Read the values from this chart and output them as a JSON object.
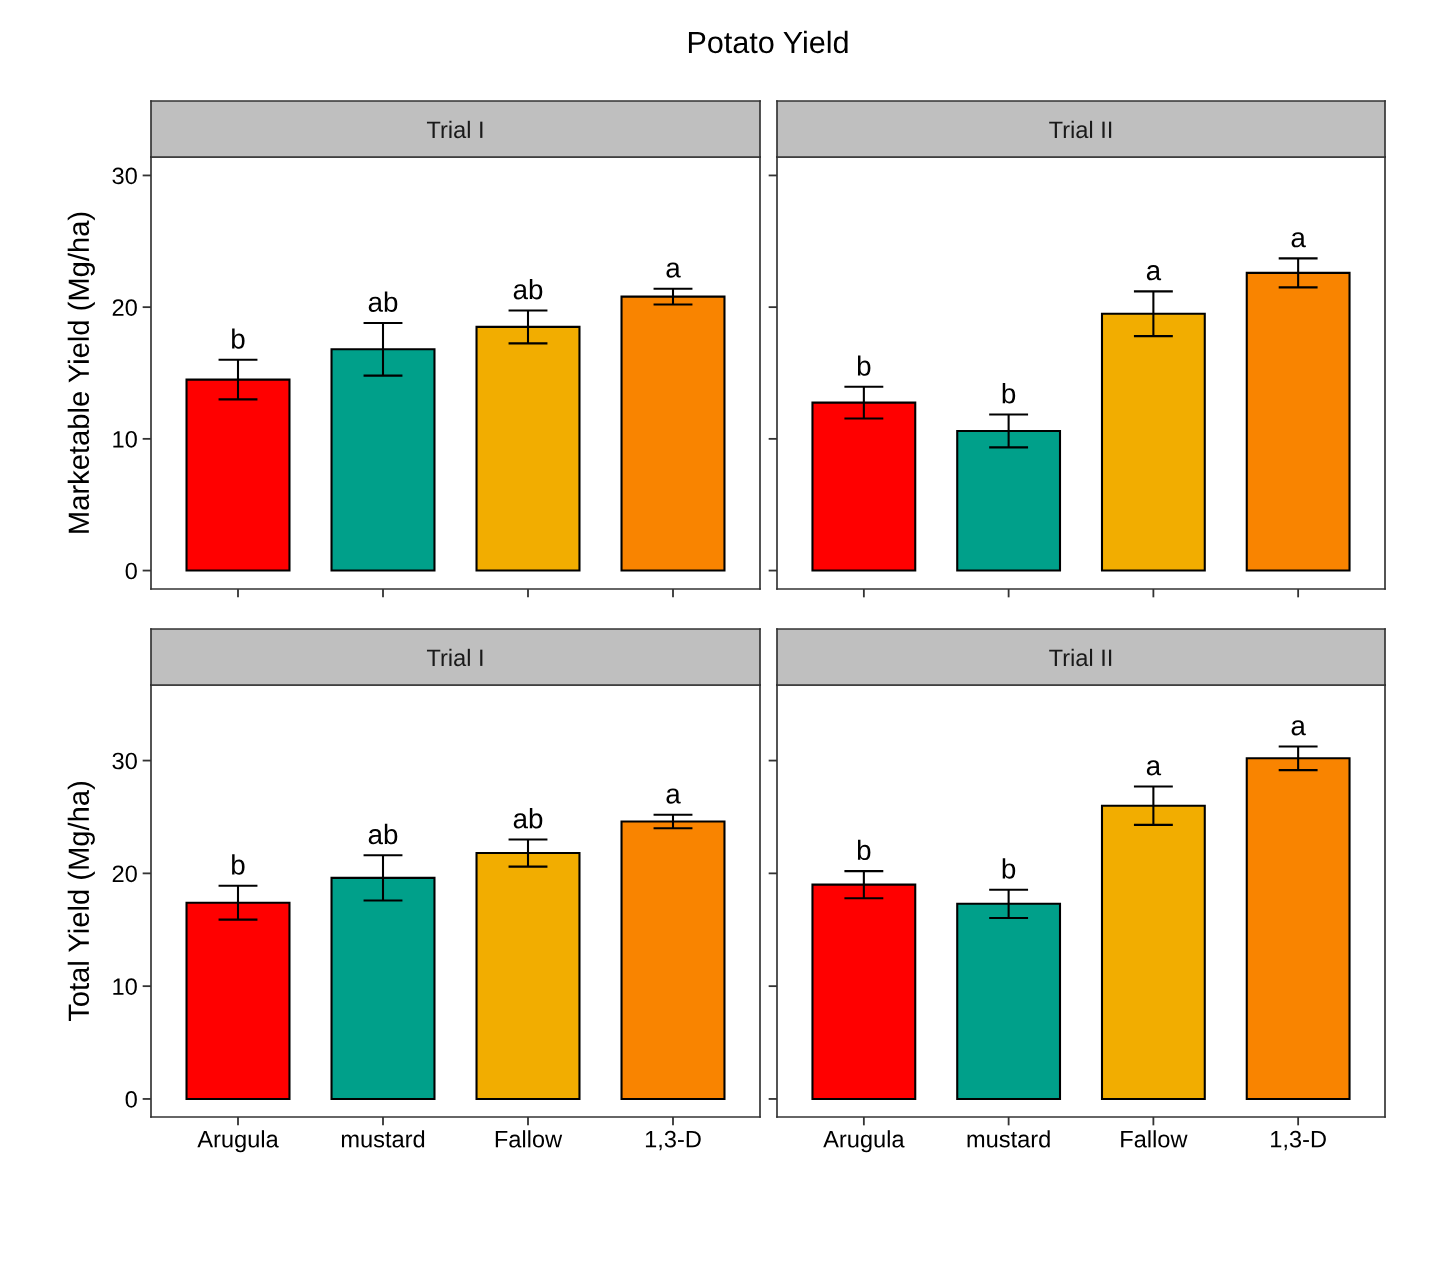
{
  "chart_data": [
    {
      "type": "bar",
      "title": "Trial I",
      "ylabel": "Marketable Yield (Mg/ha)",
      "categories": [
        "Arugula",
        "mustard",
        "Fallow",
        "1,3-D"
      ],
      "values": [
        14.5,
        16.8,
        18.5,
        20.8
      ],
      "errors": [
        1.5,
        2.0,
        1.25,
        0.6
      ],
      "colors": [
        "#ff0000",
        "#00a08a",
        "#f2ad00",
        "#f98400"
      ],
      "ylim": [
        -1.4,
        31.4
      ],
      "yticks": [
        0,
        10,
        20,
        30
      ],
      "tick_labels": "y",
      "grid": false,
      "legend": false,
      "annotations": [
        "Potato Yield",
        {
          "text": "b",
          "x": "Arugula",
          "y": 16.0
        },
        {
          "text": "ab",
          "x": "mustard",
          "y": 18.8
        },
        {
          "text": "ab",
          "x": "Fallow",
          "y": 19.75
        },
        {
          "text": "a",
          "x": "1,3-D",
          "y": 21.4
        }
      ]
    },
    {
      "type": "bar",
      "title": "Trial II",
      "categories": [
        "Arugula",
        "mustard",
        "Fallow",
        "1,3-D"
      ],
      "values": [
        12.75,
        10.6,
        19.5,
        22.6
      ],
      "errors": [
        1.2,
        1.25,
        1.7,
        1.1
      ],
      "colors": [
        "#ff0000",
        "#00a08a",
        "#f2ad00",
        "#f98400"
      ],
      "ylim": [
        -1.4,
        31.4
      ],
      "yticks": [
        0,
        10,
        20,
        30
      ],
      "tick_labels": false,
      "grid": false,
      "legend": false,
      "annotations": [
        {
          "text": "b",
          "x": "Arugula",
          "y": 13.95
        },
        {
          "text": "b",
          "x": "mustard",
          "y": 11.85
        },
        {
          "text": "a",
          "x": "Fallow",
          "y": 21.2
        },
        {
          "text": "a",
          "x": "1,3-D",
          "y": 23.7
        }
      ]
    },
    {
      "type": "bar",
      "title": "Trial I",
      "ylabel": "Total Yield (Mg/ha)",
      "categories": [
        "Arugula",
        "mustard",
        "Fallow",
        "1,3-D"
      ],
      "values": [
        17.4,
        19.6,
        21.8,
        24.6
      ],
      "errors": [
        1.5,
        2.0,
        1.2,
        0.6
      ],
      "colors": [
        "#ff0000",
        "#00a08a",
        "#f2ad00",
        "#f98400"
      ],
      "ylim": [
        -1.6,
        36.7
      ],
      "yticks": [
        0,
        10,
        20,
        30
      ],
      "grid": false,
      "legend": false,
      "annotations": [
        {
          "text": "b",
          "x": "Arugula",
          "y": 18.9
        },
        {
          "text": "ab",
          "x": "mustard",
          "y": 21.6
        },
        {
          "text": "ab",
          "x": "Fallow",
          "y": 23.0
        },
        {
          "text": "a",
          "x": "1,3-D",
          "y": 25.2
        }
      ]
    },
    {
      "type": "bar",
      "title": "Trial II",
      "categories": [
        "Arugula",
        "mustard",
        "Fallow",
        "1,3-D"
      ],
      "values": [
        19.0,
        17.3,
        26.0,
        30.2
      ],
      "errors": [
        1.2,
        1.25,
        1.7,
        1.05
      ],
      "colors": [
        "#ff0000",
        "#00a08a",
        "#f2ad00",
        "#f98400"
      ],
      "ylim": [
        -1.6,
        36.7
      ],
      "yticks": [
        0,
        10,
        20,
        30
      ],
      "tick_labels": "x",
      "grid": false,
      "legend": false,
      "annotations": [
        {
          "text": "b",
          "x": "Arugula",
          "y": 20.2
        },
        {
          "text": "b",
          "x": "mustard",
          "y": 18.55
        },
        {
          "text": "a",
          "x": "Fallow",
          "y": 27.7
        },
        {
          "text": "a",
          "x": "1,3-D",
          "y": 31.25
        }
      ]
    }
  ]
}
